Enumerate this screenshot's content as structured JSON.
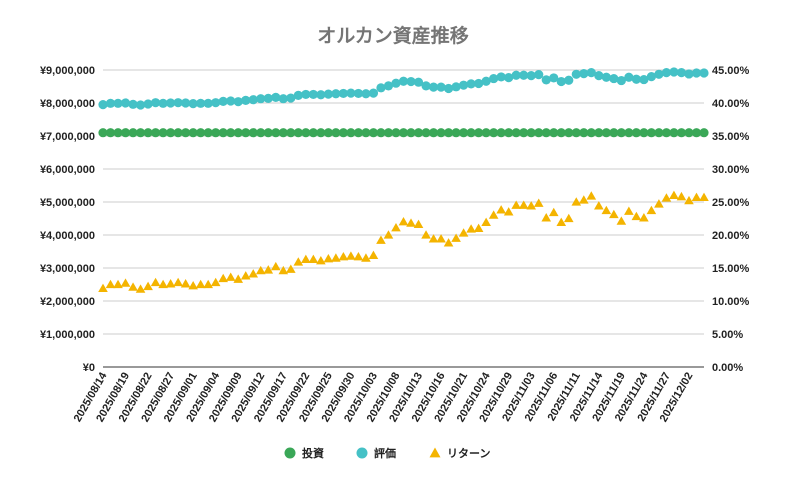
{
  "chart_data": {
    "type": "line",
    "title": "オルカン資産推移",
    "left_axis": {
      "min": 0,
      "max": 9000000,
      "step": 1000000,
      "tick_labels": [
        "¥0",
        "¥1,000,000",
        "¥2,000,000",
        "¥3,000,000",
        "¥4,000,000",
        "¥5,000,000",
        "¥6,000,000",
        "¥7,000,000",
        "¥8,000,000",
        "¥9,000,000"
      ]
    },
    "right_axis": {
      "min": 0,
      "max": 45,
      "step": 5,
      "tick_labels": [
        "0.00%",
        "5.00%",
        "10.00%",
        "15.00%",
        "20.00%",
        "25.00%",
        "30.00%",
        "35.00%",
        "40.00%",
        "45.00%"
      ]
    },
    "grid": true,
    "legend_position": "bottom",
    "x": [
      "2025/08/14",
      "2025/08/15",
      "2025/08/18",
      "2025/08/19",
      "2025/08/20",
      "2025/08/21",
      "2025/08/22",
      "2025/08/25",
      "2025/08/26",
      "2025/08/27",
      "2025/08/28",
      "2025/08/29",
      "2025/09/01",
      "2025/09/02",
      "2025/09/03",
      "2025/09/04",
      "2025/09/05",
      "2025/09/08",
      "2025/09/09",
      "2025/09/10",
      "2025/09/11",
      "2025/09/12",
      "2025/09/15",
      "2025/09/16",
      "2025/09/17",
      "2025/09/18",
      "2025/09/19",
      "2025/09/22",
      "2025/09/23",
      "2025/09/24",
      "2025/09/25",
      "2025/09/26",
      "2025/09/29",
      "2025/09/30",
      "2025/10/01",
      "2025/10/02",
      "2025/10/03",
      "2025/10/06",
      "2025/10/07",
      "2025/10/08",
      "2025/10/09",
      "2025/10/10",
      "2025/10/13",
      "2025/10/14",
      "2025/10/15",
      "2025/10/16",
      "2025/10/17",
      "2025/10/20",
      "2025/10/21",
      "2025/10/22",
      "2025/10/23",
      "2025/10/24",
      "2025/10/27",
      "2025/10/28",
      "2025/10/29",
      "2025/10/30",
      "2025/10/31",
      "2025/11/03",
      "2025/11/04",
      "2025/11/05",
      "2025/11/06",
      "2025/11/07",
      "2025/11/10",
      "2025/11/11",
      "2025/11/12",
      "2025/11/13",
      "2025/11/14",
      "2025/11/17",
      "2025/11/18",
      "2025/11/19",
      "2025/11/20",
      "2025/11/21",
      "2025/11/24",
      "2025/11/25",
      "2025/11/26",
      "2025/11/27",
      "2025/11/28",
      "2025/12/01",
      "2025/12/02",
      "2025/12/03",
      "2025/12/04"
    ],
    "x_tick_labels": [
      "2025/08/14",
      "2025/08/19",
      "2025/08/22",
      "2025/08/27",
      "2025/09/01",
      "2025/09/04",
      "2025/09/09",
      "2025/09/12",
      "2025/09/17",
      "2025/09/22",
      "2025/09/25",
      "2025/09/30",
      "2025/10/03",
      "2025/10/08",
      "2025/10/13",
      "2025/10/16",
      "2025/10/21",
      "2025/10/24",
      "2025/10/29",
      "2025/11/03",
      "2025/11/06",
      "2025/11/11",
      "2025/11/14",
      "2025/11/19",
      "2025/11/24",
      "2025/11/27",
      "2025/12/02"
    ],
    "series": [
      {
        "name": "投資",
        "axis": "left",
        "marker": "circle",
        "color": "#3aa757",
        "values": [
          7100000,
          7100000,
          7100000,
          7100000,
          7100000,
          7100000,
          7100000,
          7100000,
          7100000,
          7100000,
          7100000,
          7100000,
          7100000,
          7100000,
          7100000,
          7100000,
          7100000,
          7100000,
          7100000,
          7100000,
          7100000,
          7100000,
          7100000,
          7100000,
          7100000,
          7100000,
          7100000,
          7100000,
          7100000,
          7100000,
          7100000,
          7100000,
          7100000,
          7100000,
          7100000,
          7100000,
          7100000,
          7100000,
          7100000,
          7100000,
          7100000,
          7100000,
          7100000,
          7100000,
          7100000,
          7100000,
          7100000,
          7100000,
          7100000,
          7100000,
          7100000,
          7100000,
          7100000,
          7100000,
          7100000,
          7100000,
          7100000,
          7100000,
          7100000,
          7100000,
          7100000,
          7100000,
          7100000,
          7100000,
          7100000,
          7100000,
          7100000,
          7100000,
          7100000,
          7100000,
          7100000,
          7100000,
          7100000,
          7100000,
          7100000,
          7100000,
          7100000,
          7100000,
          7100000,
          7100000,
          7100000
        ]
      },
      {
        "name": "評価",
        "axis": "left",
        "marker": "circle",
        "color": "#45c1c6",
        "values": [
          7950000,
          7990000,
          7990000,
          8000000,
          7960000,
          7940000,
          7970000,
          8010000,
          7990000,
          8000000,
          8010000,
          8000000,
          7980000,
          7990000,
          7990000,
          8010000,
          8050000,
          8060000,
          8040000,
          8080000,
          8100000,
          8130000,
          8140000,
          8170000,
          8130000,
          8150000,
          8230000,
          8260000,
          8260000,
          8250000,
          8270000,
          8280000,
          8290000,
          8300000,
          8290000,
          8280000,
          8300000,
          8460000,
          8520000,
          8600000,
          8660000,
          8650000,
          8630000,
          8520000,
          8480000,
          8480000,
          8440000,
          8490000,
          8540000,
          8580000,
          8590000,
          8660000,
          8740000,
          8790000,
          8770000,
          8840000,
          8840000,
          8830000,
          8860000,
          8700000,
          8760000,
          8650000,
          8690000,
          8870000,
          8890000,
          8920000,
          8830000,
          8780000,
          8740000,
          8680000,
          8780000,
          8720000,
          8710000,
          8800000,
          8870000,
          8920000,
          8940000,
          8920000,
          8880000,
          8910000,
          8910000
        ]
      },
      {
        "name": "リターン",
        "axis": "right",
        "marker": "triangle",
        "color": "#f4b400",
        "values": [
          11.9,
          12.5,
          12.5,
          12.7,
          12.1,
          11.8,
          12.2,
          12.8,
          12.5,
          12.6,
          12.8,
          12.6,
          12.3,
          12.5,
          12.5,
          12.8,
          13.4,
          13.6,
          13.3,
          13.8,
          14.1,
          14.6,
          14.7,
          15.2,
          14.6,
          14.8,
          15.9,
          16.3,
          16.3,
          16.1,
          16.4,
          16.5,
          16.7,
          16.8,
          16.7,
          16.5,
          16.9,
          19.2,
          20.0,
          21.1,
          22.0,
          21.8,
          21.6,
          20.0,
          19.4,
          19.4,
          18.8,
          19.5,
          20.3,
          20.9,
          21.0,
          21.9,
          23.0,
          23.8,
          23.5,
          24.5,
          24.5,
          24.4,
          24.8,
          22.6,
          23.4,
          21.9,
          22.5,
          25.0,
          25.3,
          25.9,
          24.4,
          23.7,
          23.1,
          22.1,
          23.6,
          22.8,
          22.6,
          23.7,
          24.7,
          25.6,
          26.0,
          25.8,
          25.2,
          25.7,
          25.7
        ]
      }
    ]
  }
}
